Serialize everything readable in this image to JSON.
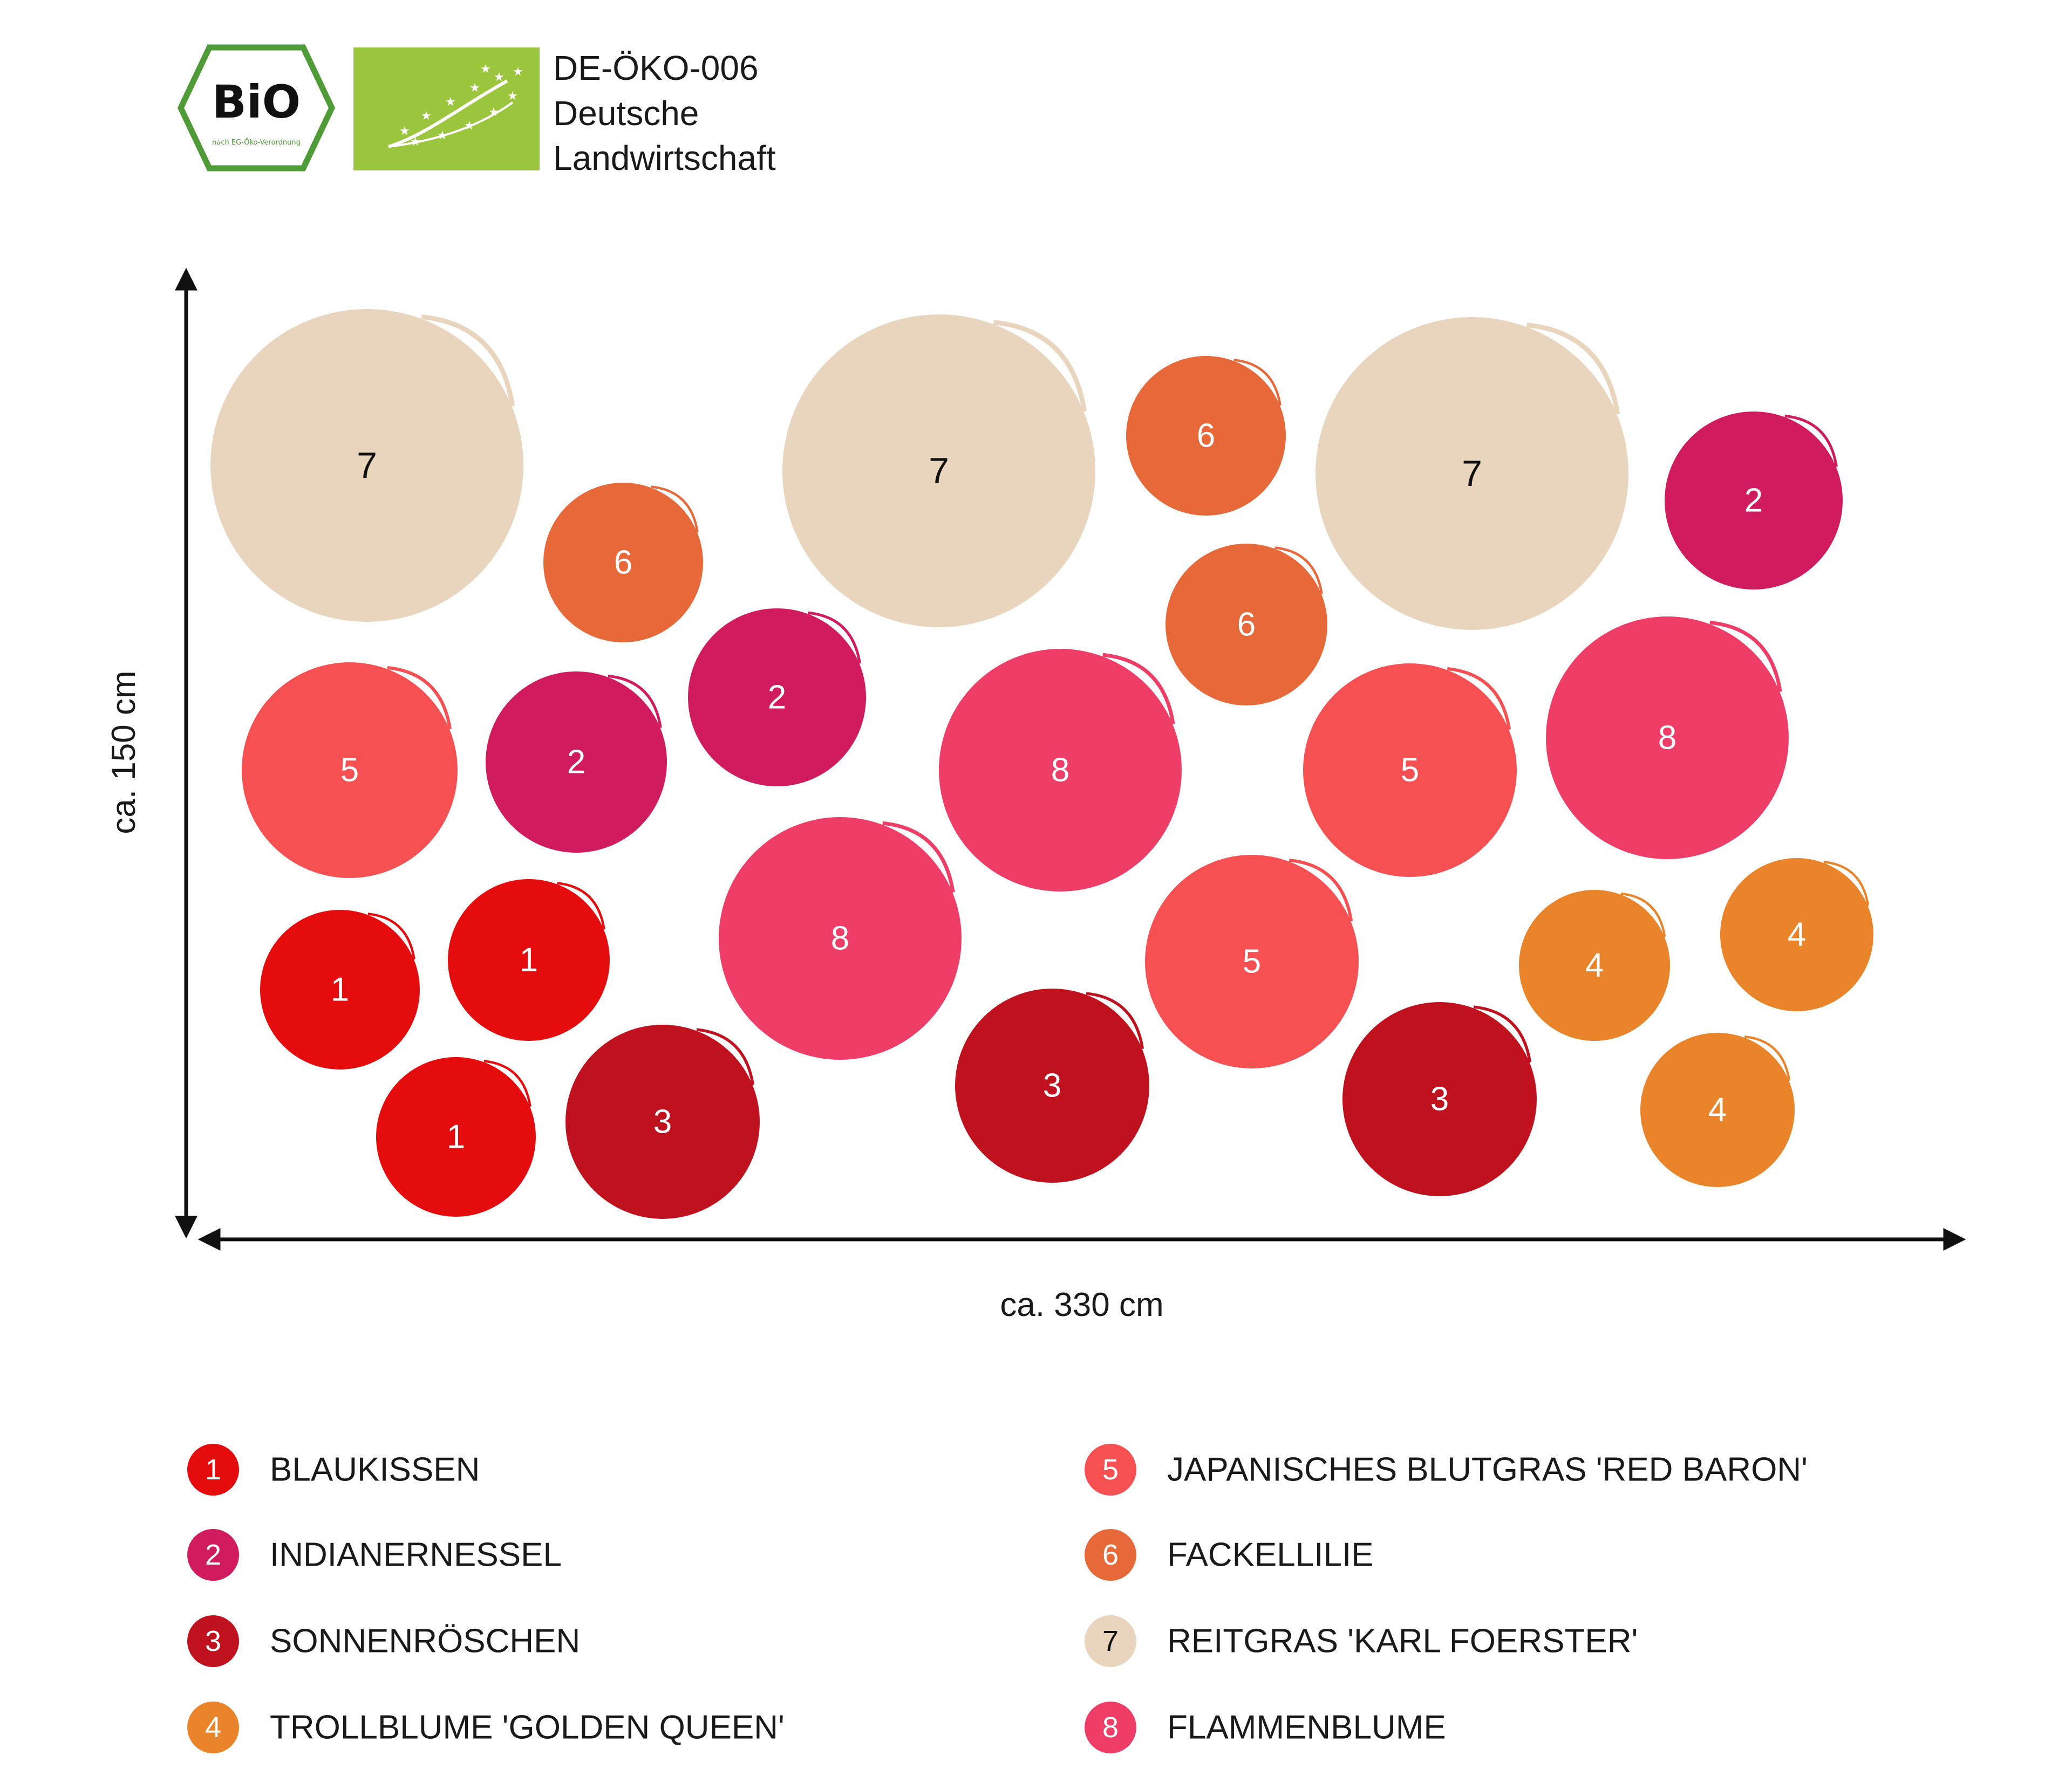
{
  "certification": {
    "bio_seal_text": "BiO",
    "bio_seal_subtext": "nach EG-Öko-Verordnung",
    "code": "DE-ÖKO-006",
    "origin_line1": "Deutsche",
    "origin_line2": "Landwirtschaft"
  },
  "dimensions": {
    "height_label": "ca. 150 cm",
    "width_label": "ca. 330 cm"
  },
  "colors": {
    "1": "#e50c0e",
    "2": "#d01c5e",
    "3": "#c0111f",
    "4": "#e9842b",
    "5": "#f65052",
    "6": "#e7693a",
    "7": "#e9d5bd",
    "8": "#ee3e68"
  },
  "plants": [
    {
      "number": "1",
      "name": "BLAUKISSEN"
    },
    {
      "number": "2",
      "name": "INDIANERNESSEL"
    },
    {
      "number": "3",
      "name": "SONNENRÖSCHEN"
    },
    {
      "number": "4",
      "name": "TROLLBLUME 'GOLDEN QUEEN'"
    },
    {
      "number": "5",
      "name": "JAPANISCHES BLUTGRAS 'RED BARON'"
    },
    {
      "number": "6",
      "name": "FACKELLILIE"
    },
    {
      "number": "7",
      "name": "REITGRAS 'KARL FOERSTER'"
    },
    {
      "number": "8",
      "name": "FLAMMENBLUME"
    }
  ],
  "bed_plan": [
    {
      "plant": "7"
    },
    {
      "plant": "6"
    },
    {
      "plant": "7"
    },
    {
      "plant": "6"
    },
    {
      "plant": "7"
    },
    {
      "plant": "2"
    },
    {
      "plant": "6"
    },
    {
      "plant": "5"
    },
    {
      "plant": "2"
    },
    {
      "plant": "2"
    },
    {
      "plant": "8"
    },
    {
      "plant": "5"
    },
    {
      "plant": "8"
    },
    {
      "plant": "1"
    },
    {
      "plant": "1"
    },
    {
      "plant": "8"
    },
    {
      "plant": "5"
    },
    {
      "plant": "4"
    },
    {
      "plant": "4"
    },
    {
      "plant": "1"
    },
    {
      "plant": "3"
    },
    {
      "plant": "3"
    },
    {
      "plant": "3"
    },
    {
      "plant": "4"
    }
  ]
}
